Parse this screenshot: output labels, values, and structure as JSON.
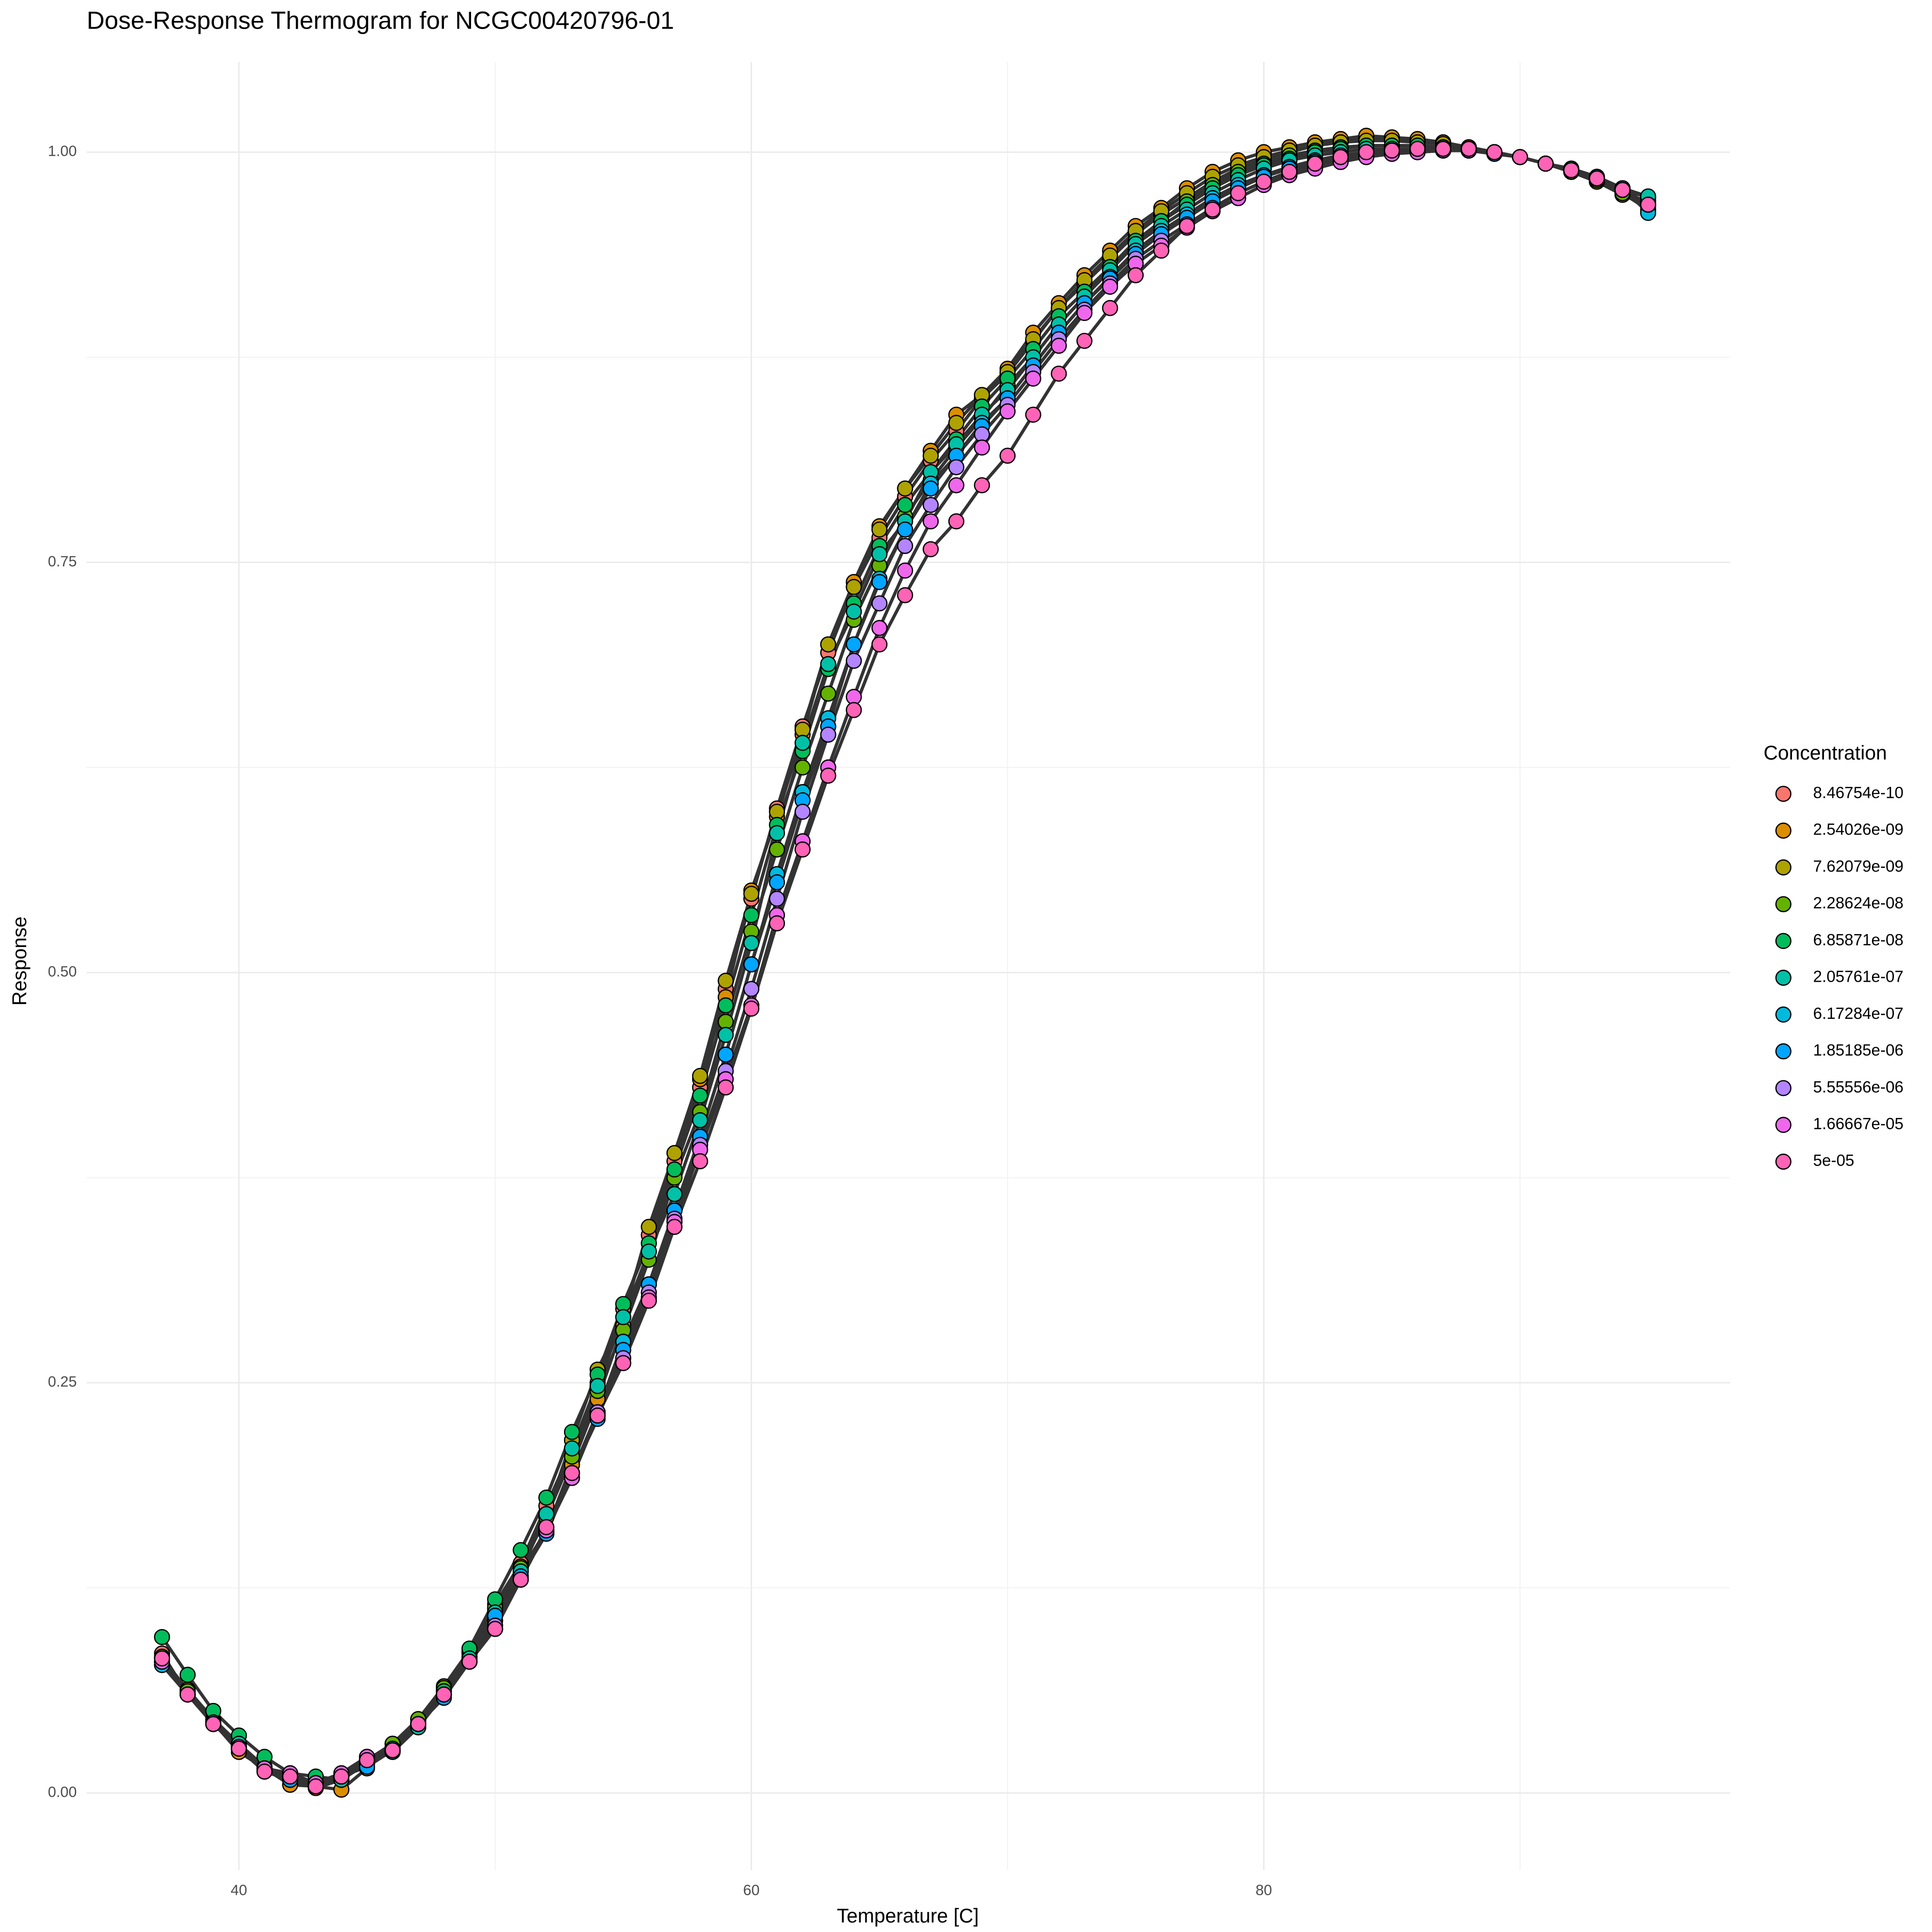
{
  "chart_data": {
    "type": "line",
    "title": "Dose-Response Thermogram for NCGC00420796-01",
    "x_label": "Temperature [C]",
    "y_label": "Response",
    "legend_title": "Concentration",
    "legend_position": "right",
    "grid": true,
    "xlim": [
      34.06,
      98.2
    ],
    "ylim": [
      -0.047,
      1.055
    ],
    "xticks": [
      40,
      60,
      80
    ],
    "yticks": [
      {
        "value": 0,
        "label": "0.00"
      },
      {
        "value": 0.25,
        "label": "0.25"
      },
      {
        "value": 0.5,
        "label": "0.50"
      },
      {
        "value": 0.75,
        "label": "0.75"
      },
      {
        "value": 1,
        "label": "1.00"
      }
    ],
    "x": [
      37,
      38,
      39,
      40,
      41,
      42,
      43,
      44,
      45,
      46,
      47,
      48,
      49,
      50,
      51,
      52,
      53,
      54,
      55,
      56,
      57,
      58,
      59,
      60,
      61,
      62,
      63,
      64,
      65,
      66,
      67,
      68,
      69,
      70,
      71,
      72,
      73,
      74,
      75,
      76,
      77,
      78,
      79,
      80,
      81,
      82,
      83,
      84,
      85,
      86,
      87,
      88,
      89,
      90,
      91,
      92,
      93,
      94,
      95
    ],
    "series": [
      {
        "name": "8.46754e-10",
        "color": "#F8766D",
        "values": [
          0.085,
          0.06,
          0.042,
          0.028,
          0.013,
          0.008,
          0.003,
          0.008,
          0.02,
          0.028,
          0.043,
          0.063,
          0.085,
          0.115,
          0.14,
          0.175,
          0.21,
          0.25,
          0.295,
          0.34,
          0.385,
          0.43,
          0.49,
          0.545,
          0.6,
          0.65,
          0.695,
          0.735,
          0.765,
          0.79,
          0.812,
          0.83,
          0.85,
          0.865,
          0.885,
          0.905,
          0.92,
          0.935,
          0.95,
          0.962,
          0.972,
          0.982,
          0.99,
          0.995,
          1.0,
          1.004,
          1.007,
          1.008,
          1.008,
          1.007,
          1.005,
          1.003,
          1.0,
          0.997,
          0.993,
          0.988,
          0.983,
          0.975,
          0.965
        ]
      },
      {
        "name": "2.54026e-09",
        "color": "#DB8E00",
        "values": [
          0.08,
          0.062,
          0.043,
          0.025,
          0.015,
          0.005,
          0.004,
          0.002,
          0.015,
          0.03,
          0.045,
          0.062,
          0.083,
          0.105,
          0.135,
          0.16,
          0.2,
          0.24,
          0.285,
          0.33,
          0.38,
          0.435,
          0.485,
          0.55,
          0.595,
          0.645,
          0.7,
          0.738,
          0.772,
          0.795,
          0.818,
          0.84,
          0.852,
          0.868,
          0.89,
          0.908,
          0.925,
          0.94,
          0.955,
          0.966,
          0.978,
          0.988,
          0.995,
          1.0,
          1.003,
          1.006,
          1.008,
          1.01,
          1.009,
          1.008,
          1.006,
          1.003,
          1.0,
          0.997,
          0.993,
          0.988,
          0.982,
          0.974,
          0.967
        ]
      },
      {
        "name": "7.62079e-09",
        "color": "#AEA200",
        "values": [
          0.082,
          0.063,
          0.045,
          0.03,
          0.016,
          0.01,
          0.005,
          0.01,
          0.018,
          0.03,
          0.045,
          0.065,
          0.087,
          0.112,
          0.138,
          0.17,
          0.215,
          0.258,
          0.29,
          0.345,
          0.39,
          0.437,
          0.495,
          0.548,
          0.598,
          0.648,
          0.7,
          0.735,
          0.77,
          0.795,
          0.815,
          0.835,
          0.852,
          0.866,
          0.886,
          0.905,
          0.922,
          0.937,
          0.952,
          0.964,
          0.975,
          0.985,
          0.992,
          0.997,
          1.001,
          1.004,
          1.006,
          1.007,
          1.007,
          1.006,
          1.005,
          1.002,
          1.0,
          0.997,
          0.993,
          0.988,
          0.982,
          0.975,
          0.968
        ]
      },
      {
        "name": "2.28624e-08",
        "color": "#64B200",
        "values": [
          0.083,
          0.062,
          0.044,
          0.027,
          0.015,
          0.008,
          0.006,
          0.01,
          0.02,
          0.03,
          0.045,
          0.064,
          0.086,
          0.113,
          0.137,
          0.168,
          0.205,
          0.245,
          0.282,
          0.325,
          0.375,
          0.415,
          0.47,
          0.525,
          0.575,
          0.625,
          0.67,
          0.715,
          0.748,
          0.778,
          0.8,
          0.82,
          0.838,
          0.858,
          0.875,
          0.895,
          0.912,
          0.928,
          0.945,
          0.958,
          0.97,
          0.98,
          0.988,
          0.993,
          0.998,
          1.001,
          1.003,
          1.004,
          1.004,
          1.004,
          1.003,
          1.002,
          1.0,
          0.997,
          0.993,
          0.988,
          0.983,
          0.975,
          0.97
        ]
      },
      {
        "name": "6.85871e-08",
        "color": "#00BD5C",
        "values": [
          0.095,
          0.072,
          0.05,
          0.035,
          0.022,
          0.012,
          0.01,
          0.008,
          0.02,
          0.025,
          0.042,
          0.062,
          0.088,
          0.118,
          0.148,
          0.18,
          0.22,
          0.255,
          0.298,
          0.335,
          0.38,
          0.425,
          0.48,
          0.535,
          0.59,
          0.635,
          0.685,
          0.725,
          0.76,
          0.785,
          0.805,
          0.825,
          0.845,
          0.862,
          0.88,
          0.9,
          0.915,
          0.93,
          0.946,
          0.958,
          0.968,
          0.978,
          0.986,
          0.992,
          0.996,
          1.0,
          1.002,
          1.004,
          1.004,
          1.004,
          1.003,
          1.002,
          1.0,
          0.997,
          0.993,
          0.99,
          0.985,
          0.978,
          0.972
        ]
      },
      {
        "name": "2.05761e-07",
        "color": "#00C1A7",
        "values": [
          0.078,
          0.06,
          0.043,
          0.03,
          0.014,
          0.008,
          0.006,
          0.008,
          0.018,
          0.025,
          0.04,
          0.06,
          0.082,
          0.11,
          0.135,
          0.17,
          0.21,
          0.248,
          0.29,
          0.33,
          0.365,
          0.41,
          0.462,
          0.518,
          0.585,
          0.64,
          0.688,
          0.72,
          0.755,
          0.775,
          0.805,
          0.822,
          0.84,
          0.855,
          0.875,
          0.895,
          0.912,
          0.928,
          0.944,
          0.955,
          0.965,
          0.975,
          0.983,
          0.99,
          0.995,
          0.998,
          1.0,
          1.002,
          1.002,
          1.002,
          1.002,
          1.001,
          0.999,
          0.997,
          0.993,
          0.989,
          0.985,
          0.978,
          0.973
        ]
      },
      {
        "name": "6.17284e-07",
        "color": "#00BADE",
        "values": [
          0.078,
          0.06,
          0.042,
          0.028,
          0.015,
          0.008,
          0.005,
          0.01,
          0.018,
          0.027,
          0.042,
          0.06,
          0.08,
          0.108,
          0.132,
          0.158,
          0.195,
          0.232,
          0.275,
          0.31,
          0.355,
          0.4,
          0.45,
          0.505,
          0.56,
          0.61,
          0.655,
          0.7,
          0.74,
          0.77,
          0.798,
          0.815,
          0.835,
          0.85,
          0.87,
          0.89,
          0.908,
          0.924,
          0.94,
          0.952,
          0.962,
          0.972,
          0.98,
          0.986,
          0.991,
          0.995,
          0.998,
          1.0,
          1.001,
          1.001,
          1.001,
          1.001,
          0.999,
          0.997,
          0.993,
          0.989,
          0.984,
          0.978,
          0.963
        ]
      },
      {
        "name": "1.85185e-06",
        "color": "#00A6FF",
        "values": [
          0.08,
          0.06,
          0.042,
          0.028,
          0.014,
          0.008,
          0.005,
          0.01,
          0.016,
          0.026,
          0.042,
          0.058,
          0.08,
          0.108,
          0.132,
          0.158,
          0.195,
          0.228,
          0.27,
          0.31,
          0.355,
          0.4,
          0.45,
          0.505,
          0.555,
          0.605,
          0.65,
          0.7,
          0.738,
          0.77,
          0.795,
          0.815,
          0.833,
          0.85,
          0.87,
          0.89,
          0.908,
          0.923,
          0.938,
          0.95,
          0.96,
          0.97,
          0.978,
          0.985,
          0.99,
          0.994,
          0.997,
          0.999,
          1.0,
          1.0,
          1.001,
          1.001,
          0.999,
          0.997,
          0.993,
          0.989,
          0.984,
          0.978,
          0.968
        ]
      },
      {
        "name": "5.55556e-06",
        "color": "#B385FF",
        "values": [
          0.08,
          0.06,
          0.043,
          0.028,
          0.015,
          0.012,
          0.006,
          0.012,
          0.022,
          0.026,
          0.042,
          0.06,
          0.08,
          0.102,
          0.13,
          0.16,
          0.192,
          0.232,
          0.265,
          0.305,
          0.35,
          0.395,
          0.44,
          0.49,
          0.545,
          0.598,
          0.645,
          0.69,
          0.725,
          0.76,
          0.785,
          0.808,
          0.828,
          0.846,
          0.866,
          0.886,
          0.904,
          0.92,
          0.935,
          0.946,
          0.956,
          0.966,
          0.975,
          0.982,
          0.988,
          0.992,
          0.996,
          0.998,
          0.999,
          1.0,
          1.001,
          1.001,
          1.0,
          0.997,
          0.993,
          0.989,
          0.984,
          0.977,
          0.968
        ]
      },
      {
        "name": "1.66667e-05",
        "color": "#EF67EB",
        "values": [
          0.08,
          0.06,
          0.042,
          0.028,
          0.015,
          0.012,
          0.006,
          0.012,
          0.022,
          0.026,
          0.042,
          0.06,
          0.08,
          0.1,
          0.13,
          0.16,
          0.192,
          0.23,
          0.262,
          0.302,
          0.348,
          0.392,
          0.435,
          0.48,
          0.535,
          0.58,
          0.625,
          0.668,
          0.71,
          0.745,
          0.775,
          0.797,
          0.82,
          0.842,
          0.862,
          0.882,
          0.902,
          0.918,
          0.932,
          0.943,
          0.954,
          0.964,
          0.972,
          0.98,
          0.986,
          0.99,
          0.994,
          0.997,
          0.999,
          1.0,
          1.001,
          1.001,
          1.0,
          0.997,
          0.993,
          0.989,
          0.984,
          0.977,
          0.968
        ]
      },
      {
        "name": "5e-05",
        "color": "#FF63B6",
        "values": [
          0.082,
          0.06,
          0.042,
          0.027,
          0.013,
          0.01,
          0.004,
          0.01,
          0.02,
          0.026,
          0.042,
          0.06,
          0.08,
          0.1,
          0.13,
          0.162,
          0.195,
          0.23,
          0.262,
          0.3,
          0.345,
          0.385,
          0.43,
          0.478,
          0.53,
          0.575,
          0.62,
          0.66,
          0.7,
          0.73,
          0.758,
          0.775,
          0.797,
          0.815,
          0.84,
          0.865,
          0.885,
          0.905,
          0.925,
          0.94,
          0.955,
          0.965,
          0.975,
          0.982,
          0.988,
          0.993,
          0.997,
          1.0,
          1.001,
          1.002,
          1.002,
          1.002,
          1.0,
          0.997,
          0.993,
          0.989,
          0.984,
          0.977,
          0.968
        ]
      }
    ]
  }
}
